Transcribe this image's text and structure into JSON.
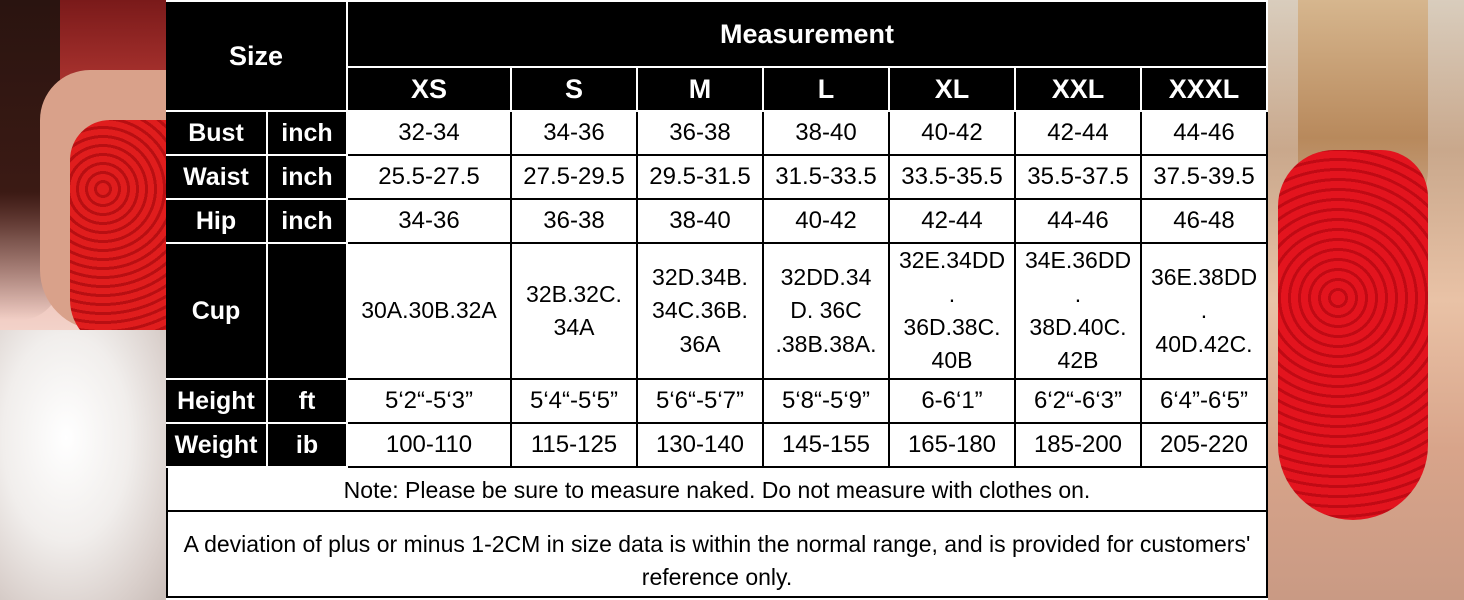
{
  "table": {
    "size_header": "Size",
    "measurement_header": "Measurement",
    "sizes": [
      "XS",
      "S",
      "M",
      "L",
      "XL",
      "XXL",
      "XXXL"
    ],
    "rows": [
      {
        "label": "Bust",
        "unit": "inch",
        "values": [
          "32-34",
          "34-36",
          "36-38",
          "38-40",
          "40-42",
          "42-44",
          "44-46"
        ]
      },
      {
        "label": "Waist",
        "unit": "inch",
        "values": [
          "25.5-27.5",
          "27.5-29.5",
          "29.5-31.5",
          "31.5-33.5",
          "33.5-35.5",
          "35.5-37.5",
          "37.5-39.5"
        ]
      },
      {
        "label": "Hip",
        "unit": "inch",
        "values": [
          "34-36",
          "36-38",
          "38-40",
          "40-42",
          "42-44",
          "44-46",
          "46-48"
        ]
      },
      {
        "label": "Cup",
        "unit": "",
        "values": [
          "30A.30B.32A",
          "32B.32C.\n34A",
          "32D.34B.\n34C.36B.\n36A",
          "32DD.34\nD.  36C\n.38B.38A.",
          "32E.34DD\n.\n36D.38C.\n40B",
          "34E.36DD\n.\n38D.40C.\n42B",
          "36E.38DD\n.\n40D.42C."
        ]
      },
      {
        "label": "Height",
        "unit": "ft",
        "values": [
          "5‘2“-5‘3”",
          "5‘4“-5‘5”",
          "5‘6“-5‘7”",
          "5‘8“-5‘9”",
          "6-6‘1”",
          "6‘2“-6‘3”",
          "6‘4”-6‘5”"
        ]
      },
      {
        "label": "Weight",
        "unit": "ib",
        "values": [
          "100-110",
          "115-125",
          "130-140",
          "145-155",
          "165-180",
          "185-200",
          "205-220"
        ]
      }
    ],
    "note": "Note: Please be sure to measure naked. Do not measure with clothes on.",
    "disclaimer": "A deviation of plus or minus 1-2CM in size data is within the normal range, and is provided for customers' reference only."
  },
  "colors": {
    "header_bg": "#000000",
    "header_text": "#ffffff",
    "body_text": "#000000"
  }
}
